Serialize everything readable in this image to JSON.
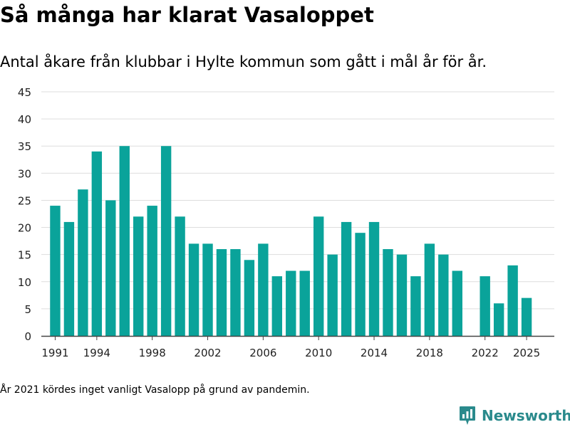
{
  "header": {
    "title": "Så många har klarat Vasaloppet",
    "subtitle": "Antal åkare från klubbar i Hylte kommun som gått i mål år för år."
  },
  "footer": {
    "note": "År 2021 kördes inget vanligt Vasalopp på grund av pandemin.",
    "brand": "Newsworthy"
  },
  "colors": {
    "bar": "#0aa39a",
    "grid": "#dddddd",
    "axis": "#444444",
    "brand": "#2a8a8c"
  },
  "icons": {
    "brand_logo": "newsworthy-logo-icon"
  },
  "chart_data": {
    "type": "bar",
    "title": "Så många har klarat Vasaloppet",
    "subtitle": "Antal åkare från klubbar i Hylte kommun som gått i mål år för år.",
    "xlabel": "",
    "ylabel": "",
    "x": [
      1991,
      1992,
      1993,
      1994,
      1995,
      1996,
      1997,
      1998,
      1999,
      2000,
      2001,
      2002,
      2003,
      2004,
      2005,
      2006,
      2007,
      2008,
      2009,
      2010,
      2011,
      2012,
      2013,
      2014,
      2015,
      2016,
      2017,
      2018,
      2019,
      2020,
      2022,
      2023,
      2024,
      2025
    ],
    "values": [
      24,
      21,
      27,
      34,
      25,
      35,
      22,
      24,
      35,
      22,
      17,
      17,
      16,
      16,
      14,
      17,
      11,
      12,
      12,
      22,
      15,
      21,
      19,
      21,
      16,
      15,
      11,
      17,
      15,
      12,
      11,
      6,
      13,
      7
    ],
    "xlim": [
      1990,
      2027
    ],
    "ylim": [
      0,
      45
    ],
    "yticks": [
      0,
      5,
      10,
      15,
      20,
      25,
      30,
      35,
      40,
      45
    ],
    "xticks": [
      1991,
      1994,
      1998,
      2002,
      2006,
      2010,
      2014,
      2018,
      2022,
      2025
    ],
    "grid": true,
    "legend": "none"
  }
}
